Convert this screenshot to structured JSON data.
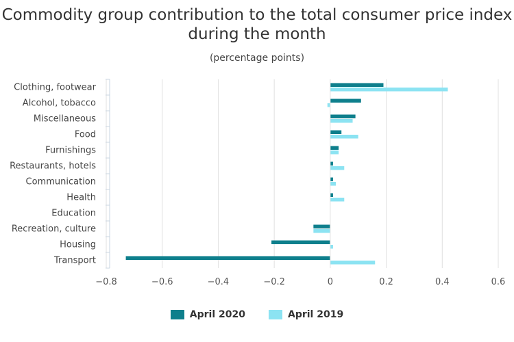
{
  "chart_data": {
    "type": "bar",
    "orientation": "horizontal",
    "title": "Commodity group contribution to the total consumer price index during the month",
    "subtitle": "(percentage points)",
    "categories": [
      "Clothing, footwear",
      "Alcohol, tobacco",
      "Miscellaneous",
      "Food",
      "Furnishings",
      "Restaurants, hotels",
      "Communication",
      "Health",
      "Education",
      "Recreation, culture",
      "Housing",
      "Transport"
    ],
    "series": [
      {
        "name": "April 2020",
        "color": "#0e7f8c",
        "values": [
          0.19,
          0.11,
          0.09,
          0.04,
          0.03,
          0.01,
          0.01,
          0.01,
          0.0,
          -0.06,
          -0.21,
          -0.73
        ]
      },
      {
        "name": "April 2019",
        "color": "#8ce3f2",
        "values": [
          0.42,
          -0.01,
          0.08,
          0.1,
          0.03,
          0.05,
          0.02,
          0.05,
          0.0,
          -0.06,
          0.01,
          0.16
        ]
      }
    ],
    "xlim": [
      -0.8,
      0.6
    ],
    "xticks": [
      -0.8,
      -0.6,
      -0.4,
      -0.2,
      0,
      0.2,
      0.4,
      0.6
    ],
    "xtick_labels": [
      "−0.8",
      "−0.6",
      "−0.4",
      "−0.2",
      "0",
      "0.2",
      "0.4",
      "0.6"
    ],
    "grid": true,
    "legend_position": "bottom-center"
  }
}
